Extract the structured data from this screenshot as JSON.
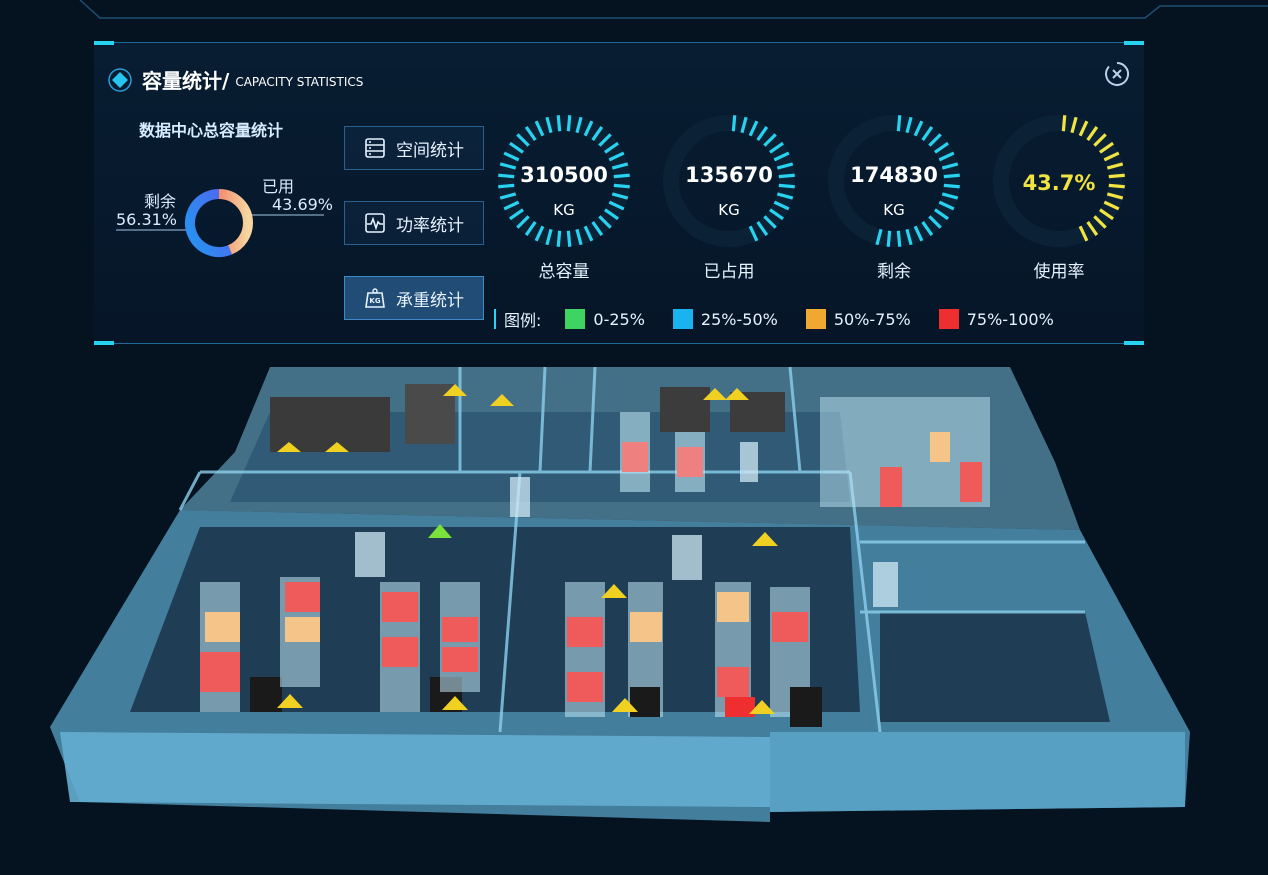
{
  "panel": {
    "title_cn": "容量统计/",
    "title_en": "CAPACITY STATISTICS",
    "subtitle": "数据中心总容量统计"
  },
  "donut": {
    "remaining_label": "剩余",
    "remaining_pct": "56.31%",
    "used_label": "已用",
    "used_pct": "43.69%",
    "used_fraction": 0.4369
  },
  "buttons": [
    {
      "label": "空间统计",
      "icon": "server-rack-icon"
    },
    {
      "label": "功率统计",
      "icon": "power-wave-icon"
    },
    {
      "label": "承重统计",
      "icon": "kg-weight-icon",
      "active": true
    }
  ],
  "gauges": [
    {
      "value": "310500",
      "unit": "KG",
      "label": "总容量",
      "fill": 1.0,
      "color": "#27d3f0"
    },
    {
      "value": "135670",
      "unit": "KG",
      "label": "已占用",
      "fill": 0.437,
      "color": "#27d3f0"
    },
    {
      "value": "174830",
      "unit": "KG",
      "label": "剩余",
      "fill": 0.563,
      "color": "#27d3f0"
    },
    {
      "value": "43.7%",
      "unit": "",
      "label": "使用率",
      "fill": 0.437,
      "color": "#f1e440"
    }
  ],
  "legend": {
    "title": "图例:",
    "items": [
      {
        "label": "0-25%",
        "color": "#3ed462"
      },
      {
        "label": "25%-50%",
        "color": "#19b4ef"
      },
      {
        "label": "50%-75%",
        "color": "#f0a930"
      },
      {
        "label": "75%-100%",
        "color": "#ef2f2f"
      }
    ]
  }
}
